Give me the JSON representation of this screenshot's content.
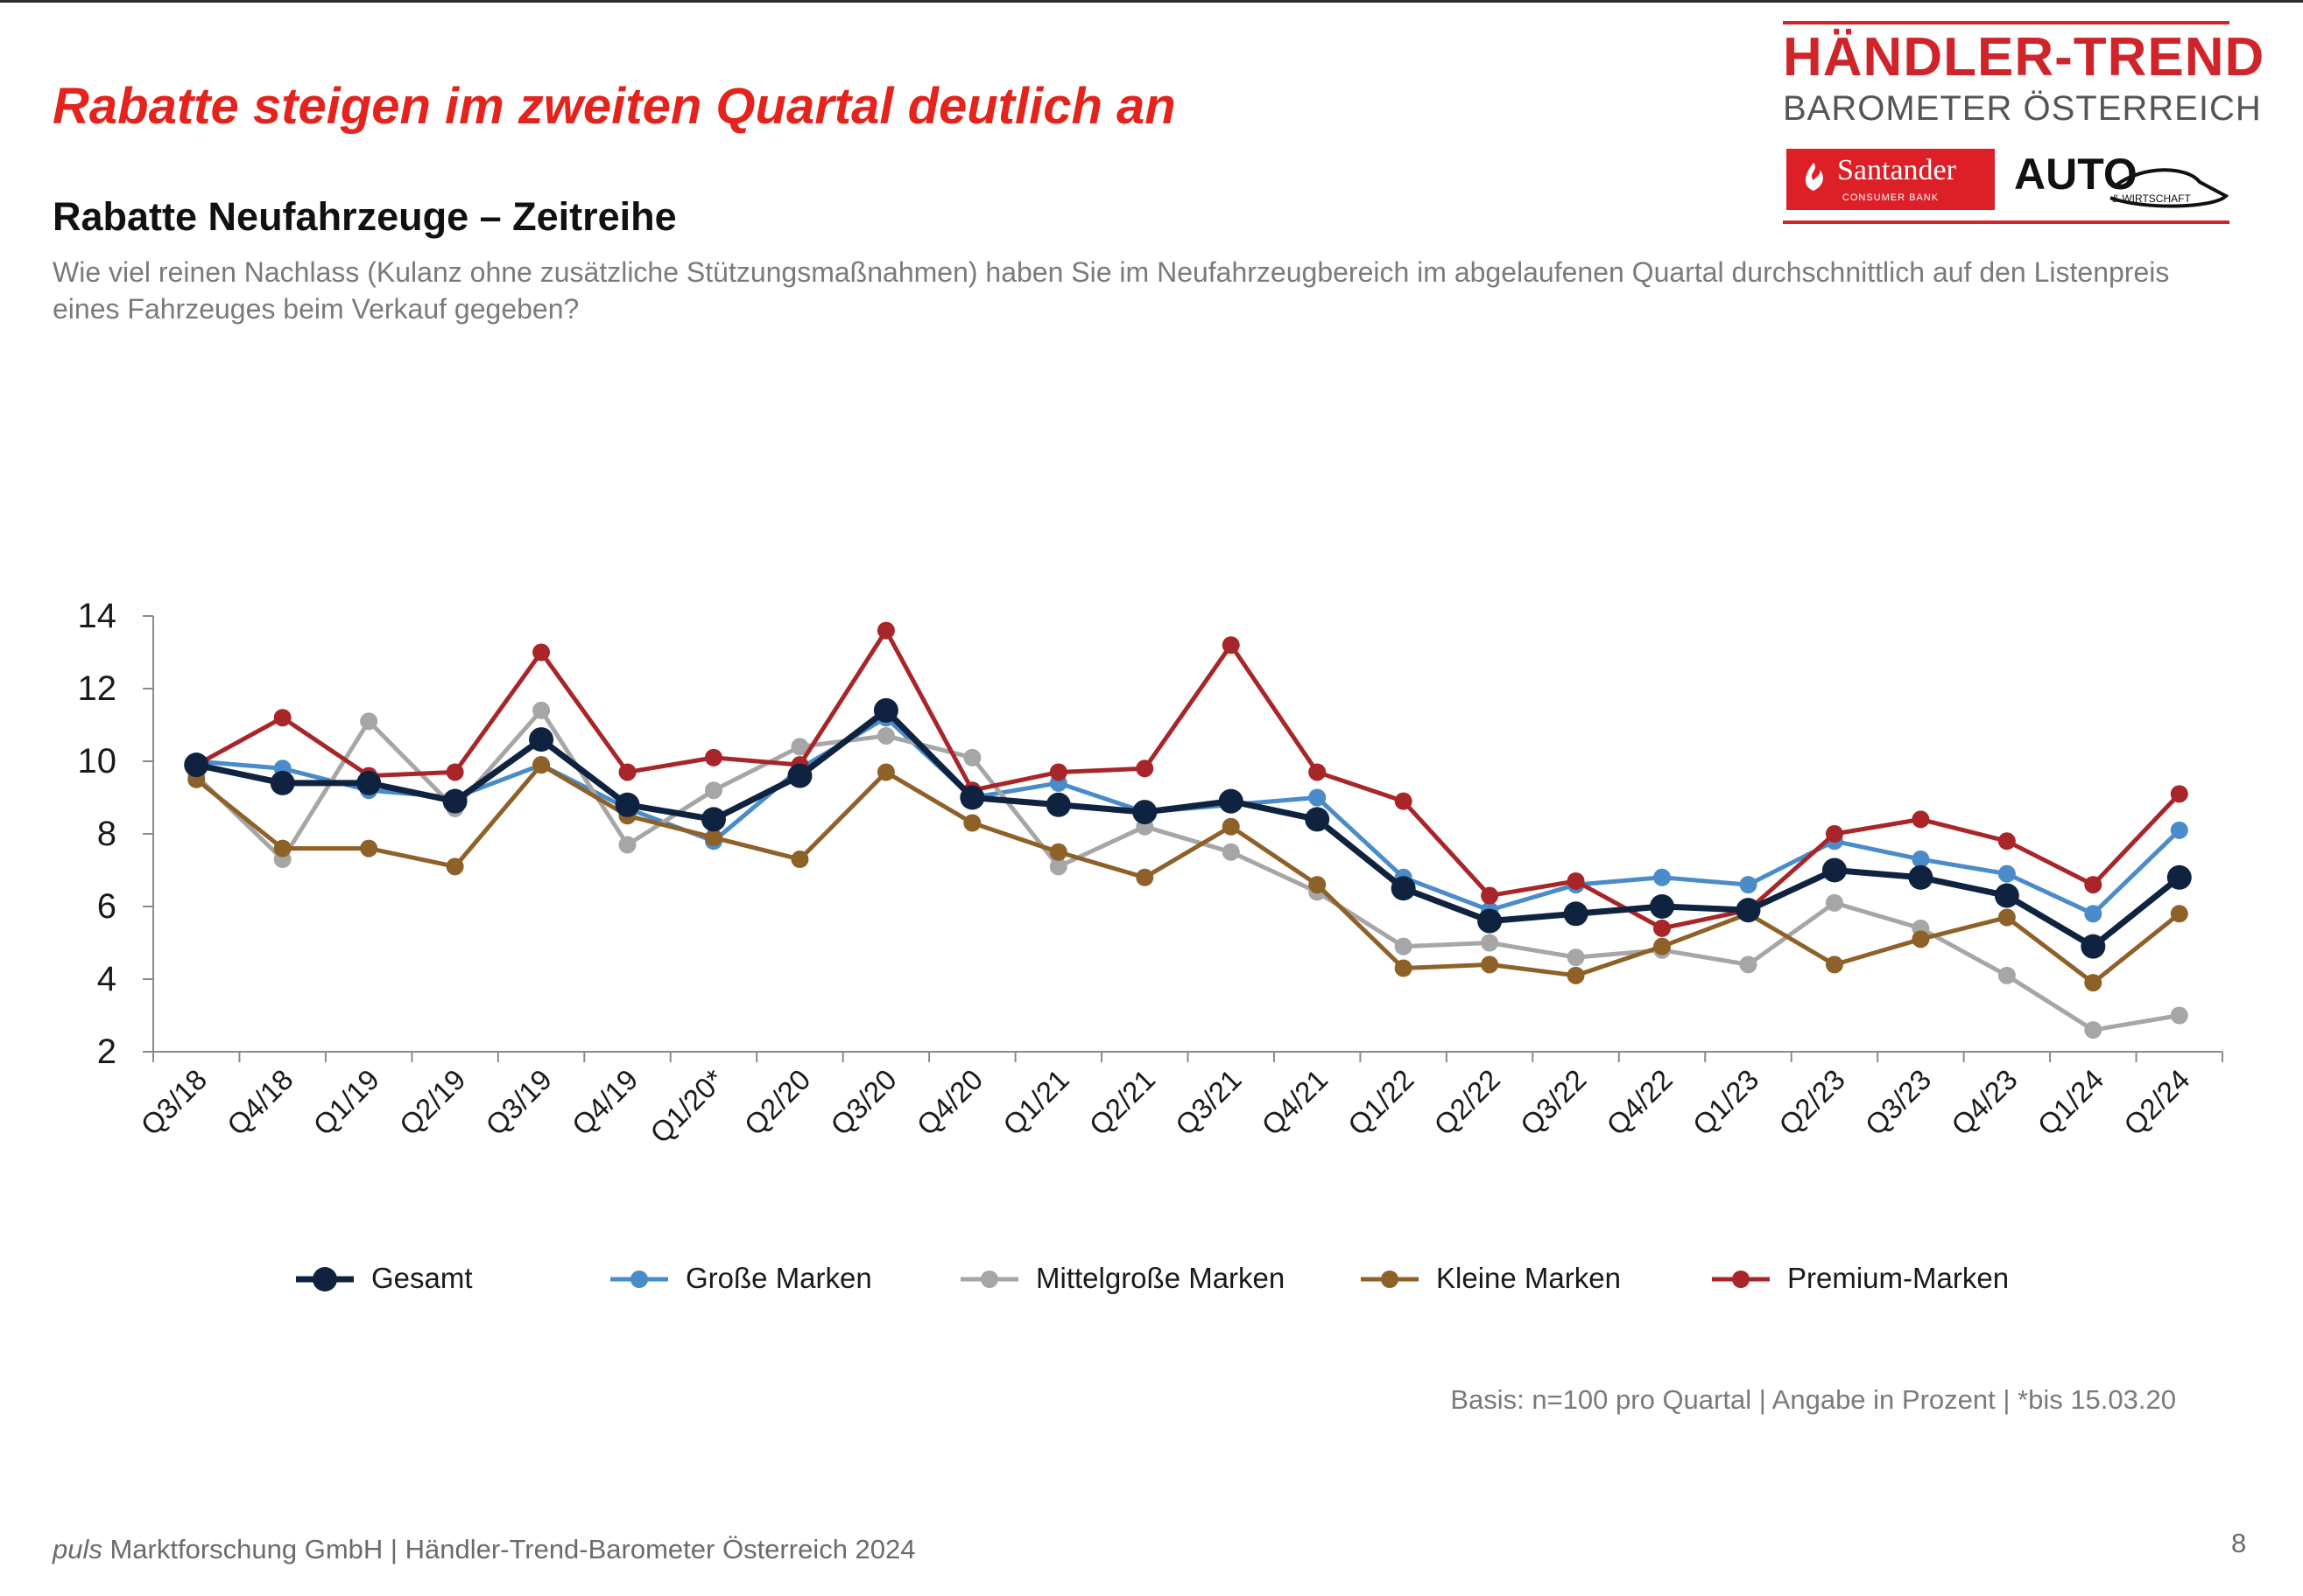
{
  "header": {
    "headline": "Rabatte steigen im zweiten Quartal deutlich an",
    "subtitle": "Rabatte Neufahrzeuge – Zeitreihe",
    "question": "Wie viel reinen Nachlass (Kulanz ohne zusätzliche Stützungsmaßnahmen) haben Sie im Neufahrzeugbereich im abgelaufenen Quartal durchschnittlich auf den Listenpreis eines Fahrzeuges beim Verkauf gegeben?"
  },
  "logo": {
    "title": "HÄNDLER-TREND",
    "subtitle": "BAROMETER ÖSTERREICH",
    "santander": "Santander",
    "santander_sub": "CONSUMER BANK",
    "auto": "AUTO",
    "auto_sub": "& WIRTSCHAFT"
  },
  "chart_data": {
    "type": "line",
    "title": "",
    "xlabel": "",
    "ylabel": "",
    "ylim": [
      2,
      14
    ],
    "yticks": [
      2,
      4,
      6,
      8,
      10,
      12,
      14
    ],
    "grid": false,
    "legend_position": "bottom",
    "categories": [
      "Q3/18",
      "Q4/18",
      "Q1/19",
      "Q2/19",
      "Q3/19",
      "Q4/19",
      "Q1/20*",
      "Q2/20",
      "Q3/20",
      "Q4/20",
      "Q1/21",
      "Q2/21",
      "Q3/21",
      "Q4/21",
      "Q1/22",
      "Q2/22",
      "Q3/22",
      "Q4/22",
      "Q1/23",
      "Q2/23",
      "Q3/23",
      "Q4/23",
      "Q1/24",
      "Q2/24"
    ],
    "series": [
      {
        "name": "Große Marken",
        "color": "#4a8bc9",
        "values": [
          10.0,
          9.8,
          9.2,
          9.0,
          9.9,
          8.7,
          7.8,
          9.8,
          11.2,
          9.0,
          9.4,
          8.6,
          8.8,
          9.0,
          6.8,
          5.9,
          6.6,
          6.8,
          6.6,
          7.8,
          7.3,
          6.9,
          5.8,
          8.1
        ]
      },
      {
        "name": "Mittelgroße Marken",
        "color": "#a6a6a6",
        "values": [
          9.6,
          7.3,
          11.1,
          8.7,
          11.4,
          7.7,
          9.2,
          10.4,
          10.7,
          10.1,
          7.1,
          8.2,
          7.5,
          6.4,
          4.9,
          5.0,
          4.6,
          4.8,
          4.4,
          6.1,
          5.4,
          4.1,
          2.6,
          3.0
        ]
      },
      {
        "name": "Kleine Marken",
        "color": "#8e6129",
        "values": [
          9.5,
          7.6,
          7.6,
          7.1,
          9.9,
          8.5,
          7.9,
          7.3,
          9.7,
          8.3,
          7.5,
          6.8,
          8.2,
          6.6,
          4.3,
          4.4,
          4.1,
          4.9,
          5.8,
          4.4,
          5.1,
          5.7,
          3.9,
          5.8
        ]
      },
      {
        "name": "Premium-Marken",
        "color": "#a82629",
        "values": [
          9.9,
          11.2,
          9.6,
          9.7,
          13.0,
          9.7,
          10.1,
          9.9,
          13.6,
          9.2,
          9.7,
          9.8,
          13.2,
          9.7,
          8.9,
          6.3,
          6.7,
          5.4,
          5.9,
          8.0,
          8.4,
          7.8,
          6.6,
          9.1
        ]
      },
      {
        "name": "Gesamt",
        "color": "#0f2340",
        "values": [
          9.9,
          9.4,
          9.4,
          8.9,
          10.6,
          8.8,
          8.4,
          9.6,
          11.4,
          9.0,
          8.8,
          8.6,
          8.9,
          8.4,
          6.5,
          5.6,
          5.8,
          6.0,
          5.9,
          7.0,
          6.8,
          6.3,
          4.9,
          6.8
        ]
      }
    ],
    "legend_order": [
      "Gesamt",
      "Große Marken",
      "Mittelgroße Marken",
      "Kleine Marken",
      "Premium-Marken"
    ]
  },
  "footnote": "Basis: n=100 pro Quartal | Angabe in Prozent | *bis 15.03.20",
  "footer": {
    "company_italic": "puls",
    "text": " Marktforschung GmbH | Händler-Trend-Barometer Österreich 2024"
  },
  "page_number": "8"
}
